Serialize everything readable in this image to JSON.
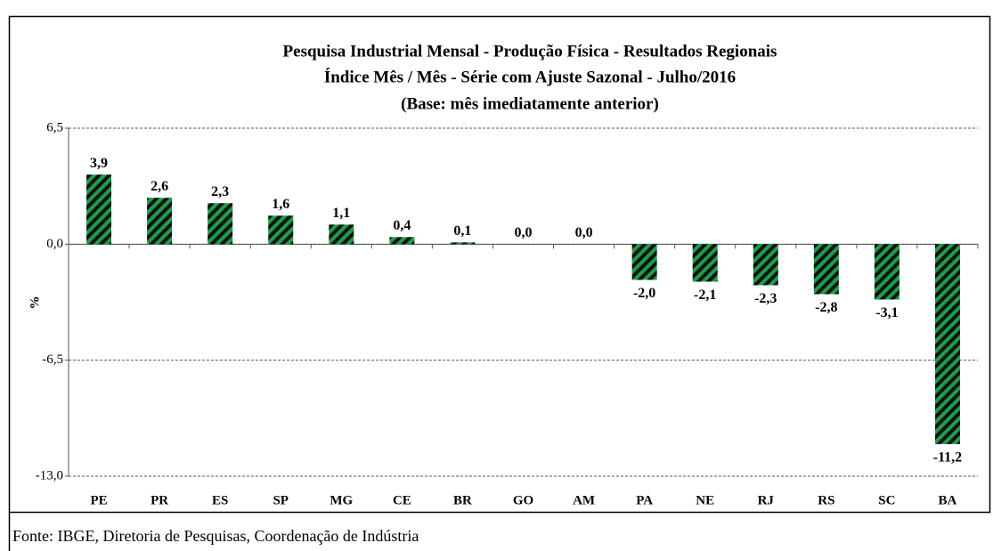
{
  "chart_data": {
    "type": "bar",
    "title": [
      "Pesquisa Industrial Mensal - Produção Física - Resultados Regionais",
      "Índice Mês / Mês - Série com Ajuste Sazonal - Julho/2016",
      "(Base: mês imediatamente anterior)"
    ],
    "y_label": "%",
    "categories": [
      "PE",
      "PR",
      "ES",
      "SP",
      "MG",
      "CE",
      "BR",
      "GO",
      "AM",
      "PA",
      "NE",
      "RJ",
      "RS",
      "SC",
      "BA"
    ],
    "values": [
      3.9,
      2.6,
      2.3,
      1.6,
      1.1,
      0.4,
      0.1,
      0.0,
      0.0,
      -2.0,
      -2.1,
      -2.3,
      -2.8,
      -3.1,
      -11.2
    ],
    "value_labels": [
      "3,9",
      "2,6",
      "2,3",
      "1,6",
      "1,1",
      "0,4",
      "0,1",
      "0,0",
      "0,0",
      "-2,0",
      "-2,1",
      "-2,3",
      "-2,8",
      "-3,1",
      "-11,2"
    ],
    "color": "#1a9f48",
    "ylim": [
      -13,
      6.5
    ],
    "yticks": [
      {
        "value": -13,
        "label": "-13,0"
      },
      {
        "value": -6.5,
        "label": "-6,5"
      },
      {
        "value": 0,
        "label": "0,0"
      },
      {
        "value": 6.5,
        "label": "6,5"
      }
    ],
    "grid": true,
    "source": "Fonte: IBGE, Diretoria de Pesquisas, Coordenação de Indústria"
  }
}
